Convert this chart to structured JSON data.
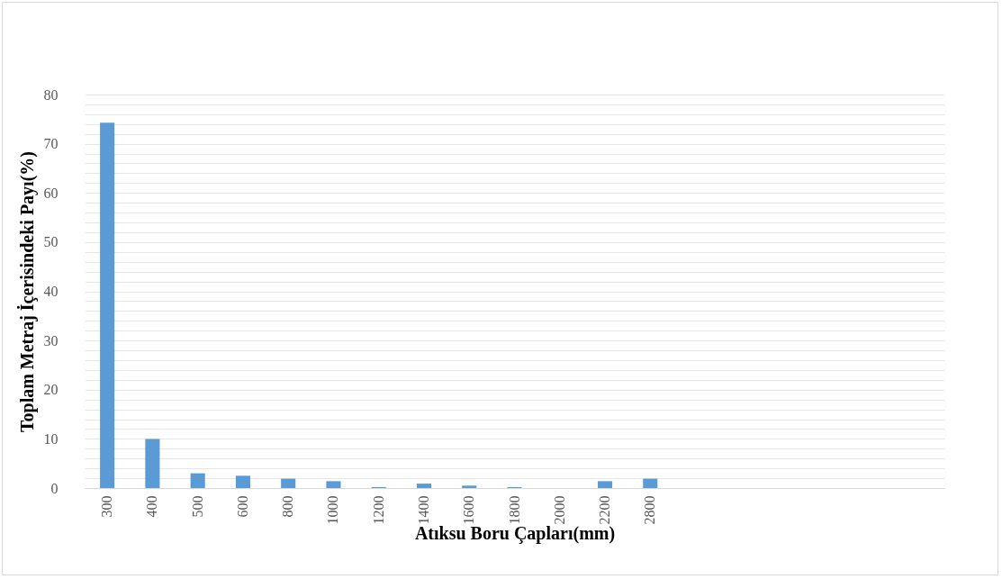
{
  "chart_data": {
    "type": "bar",
    "xlabel": "Atıksu Boru Çapları(mm)",
    "ylabel": "Toplam Metraj İçerisindeki Payı(%)",
    "categories": [
      "300",
      "400",
      "500",
      "600",
      "800",
      "1000",
      "1200",
      "1400",
      "1600",
      "1800",
      "2000",
      "2200",
      "2800",
      null,
      null,
      null,
      null,
      null,
      null
    ],
    "values": [
      74.3,
      10,
      3,
      2.5,
      1.9,
      1.4,
      0.2,
      0.9,
      0.5,
      0.2,
      0,
      1.4,
      1.9,
      null,
      null,
      null,
      null,
      null,
      null
    ],
    "color": "#5b9bd5",
    "ylim": [
      0,
      80
    ],
    "yticks": [
      0,
      {
        "value": 2,
        "label": null
      },
      {
        "value": 4,
        "label": null
      },
      {
        "value": 6,
        "label": null
      },
      {
        "value": 8,
        "label": null
      },
      10,
      {
        "value": 12,
        "label": null
      },
      {
        "value": 14,
        "label": null
      },
      {
        "value": 16,
        "label": null
      },
      {
        "value": 18,
        "label": null
      },
      20,
      {
        "value": 22,
        "label": null
      },
      {
        "value": 24,
        "label": null
      },
      {
        "value": 26,
        "label": null
      },
      {
        "value": 28,
        "label": null
      },
      30,
      {
        "value": 32,
        "label": null
      },
      {
        "value": 34,
        "label": null
      },
      {
        "value": 36,
        "label": null
      },
      {
        "value": 38,
        "label": null
      },
      40,
      {
        "value": 42,
        "label": null
      },
      {
        "value": 44,
        "label": null
      },
      {
        "value": 46,
        "label": null
      },
      {
        "value": 48,
        "label": null
      },
      50,
      {
        "value": 52,
        "label": null
      },
      {
        "value": 54,
        "label": null
      },
      {
        "value": 56,
        "label": null
      },
      {
        "value": 58,
        "label": null
      },
      60,
      {
        "value": 62,
        "label": null
      },
      {
        "value": 64,
        "label": null
      },
      {
        "value": 66,
        "label": null
      },
      {
        "value": 68,
        "label": null
      },
      70,
      {
        "value": 72,
        "label": null
      },
      {
        "value": 74,
        "label": null
      },
      {
        "value": 76,
        "label": null
      },
      {
        "value": 78,
        "label": null
      },
      80
    ],
    "grid": true
  }
}
